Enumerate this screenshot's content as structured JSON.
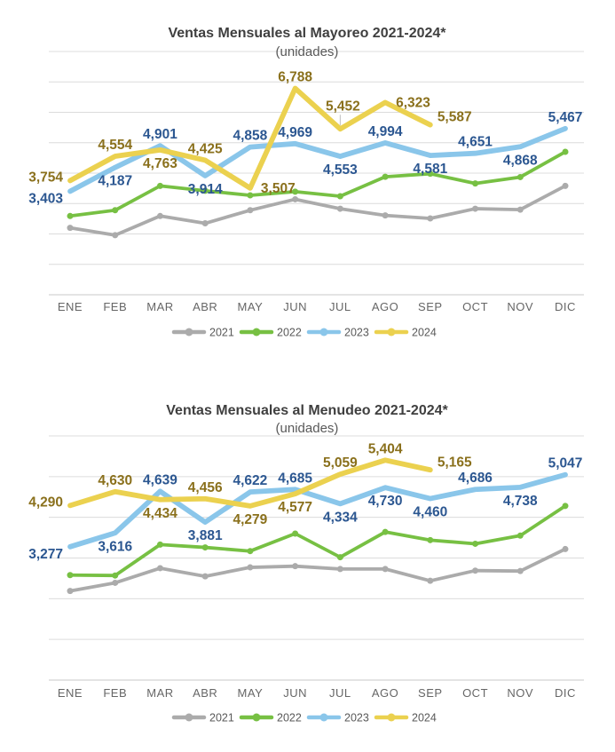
{
  "page": {
    "background": "#FFFFFF"
  },
  "colors": {
    "gridline": "#DCDCDC",
    "axis_line": "#C8C8C8",
    "leader_line": "#C0C0C0",
    "title_text": "#3F3F3F",
    "subtitle_text": "#595959",
    "month_text": "#666666",
    "legend_text": "#595959",
    "series_2021": "#ABABAB",
    "series_2022": "#77C043",
    "series_2023": "#8AC6EA",
    "series_2024": "#EBD14F",
    "label_2023": "#2C5791",
    "label_2024": "#8A701C"
  },
  "chart_data": [
    {
      "type": "line",
      "title": "Ventas Mensuales al Mayoreo 2021-2024*",
      "subtitle": "(unidades)",
      "categories": [
        "ENE",
        "FEB",
        "MAR",
        "ABR",
        "MAY",
        "JUN",
        "JUL",
        "AGO",
        "SEP",
        "OCT",
        "NOV",
        "DIC"
      ],
      "ylim": [
        0,
        8000
      ],
      "grid_step": 1000,
      "grid": true,
      "legend_position": "bottom",
      "series": [
        {
          "name": "2021",
          "color": "#ABABAB",
          "markers": true,
          "labels_shown": false,
          "values_estimated": true,
          "values": [
            2200,
            1960,
            2590,
            2350,
            2780,
            3140,
            2830,
            2610,
            2510,
            2830,
            2800,
            3580
          ]
        },
        {
          "name": "2022",
          "color": "#77C043",
          "markers": true,
          "labels_shown": false,
          "values_estimated": true,
          "values": [
            2590,
            2780,
            3580,
            3420,
            3270,
            3390,
            3240,
            3880,
            3980,
            3660,
            3870,
            4700
          ]
        },
        {
          "name": "2023",
          "color": "#8AC6EA",
          "markers": false,
          "labels_shown": true,
          "label_color": "#2C5791",
          "values": [
            3403,
            4187,
            4901,
            3914,
            4858,
            4969,
            4553,
            4994,
            4581,
            4651,
            4868,
            5467
          ],
          "label_pos": [
            "ld",
            "b",
            "a",
            "b",
            "a",
            "a",
            "b",
            "a",
            "b",
            "a",
            "b",
            "a"
          ]
        },
        {
          "name": "2024",
          "color": "#EBD14F",
          "markers": false,
          "labels_shown": true,
          "label_color": "#8A701C",
          "values": [
            3754,
            4554,
            4763,
            4425,
            3507,
            6788,
            5452,
            6323,
            5587,
            null,
            null,
            null
          ],
          "label_pos": [
            "lu",
            "a",
            "b",
            "a",
            "r",
            "a",
            "al",
            "r",
            "ru",
            null,
            null,
            null
          ]
        }
      ]
    },
    {
      "type": "line",
      "title": "Ventas Mensuales al Menudeo 2021-2024*",
      "subtitle": "(unidades)",
      "categories": [
        "ENE",
        "FEB",
        "MAR",
        "ABR",
        "MAY",
        "JUN",
        "JUL",
        "AGO",
        "SEP",
        "OCT",
        "NOV",
        "DIC"
      ],
      "ylim": [
        0,
        6000
      ],
      "grid_step": 1000,
      "grid": true,
      "legend_position": "bottom",
      "series": [
        {
          "name": "2021",
          "color": "#ABABAB",
          "markers": true,
          "labels_shown": false,
          "values_estimated": true,
          "values": [
            2190,
            2390,
            2750,
            2550,
            2770,
            2800,
            2730,
            2730,
            2440,
            2690,
            2680,
            3220
          ]
        },
        {
          "name": "2022",
          "color": "#77C043",
          "markers": true,
          "labels_shown": false,
          "values_estimated": true,
          "values": [
            2580,
            2570,
            3330,
            3260,
            3170,
            3600,
            3020,
            3640,
            3440,
            3350,
            3550,
            4280
          ]
        },
        {
          "name": "2023",
          "color": "#8AC6EA",
          "markers": false,
          "labels_shown": true,
          "label_color": "#2C5791",
          "values": [
            3277,
            3616,
            4639,
            3881,
            4622,
            4685,
            4334,
            4730,
            4460,
            4686,
            4738,
            5047
          ],
          "label_pos": [
            "ld",
            "b",
            "a",
            "b",
            "a",
            "a",
            "b",
            "b",
            "b",
            "a",
            "b",
            "a"
          ]
        },
        {
          "name": "2024",
          "color": "#EBD14F",
          "markers": false,
          "labels_shown": true,
          "label_color": "#8A701C",
          "values": [
            4290,
            4630,
            4434,
            4456,
            4279,
            4577,
            5059,
            5404,
            5165,
            null,
            null,
            null
          ],
          "label_pos": [
            "lu",
            "a",
            "b",
            "a",
            "b",
            "b",
            "a",
            "a",
            "ru",
            null,
            null,
            null
          ]
        }
      ]
    }
  ]
}
